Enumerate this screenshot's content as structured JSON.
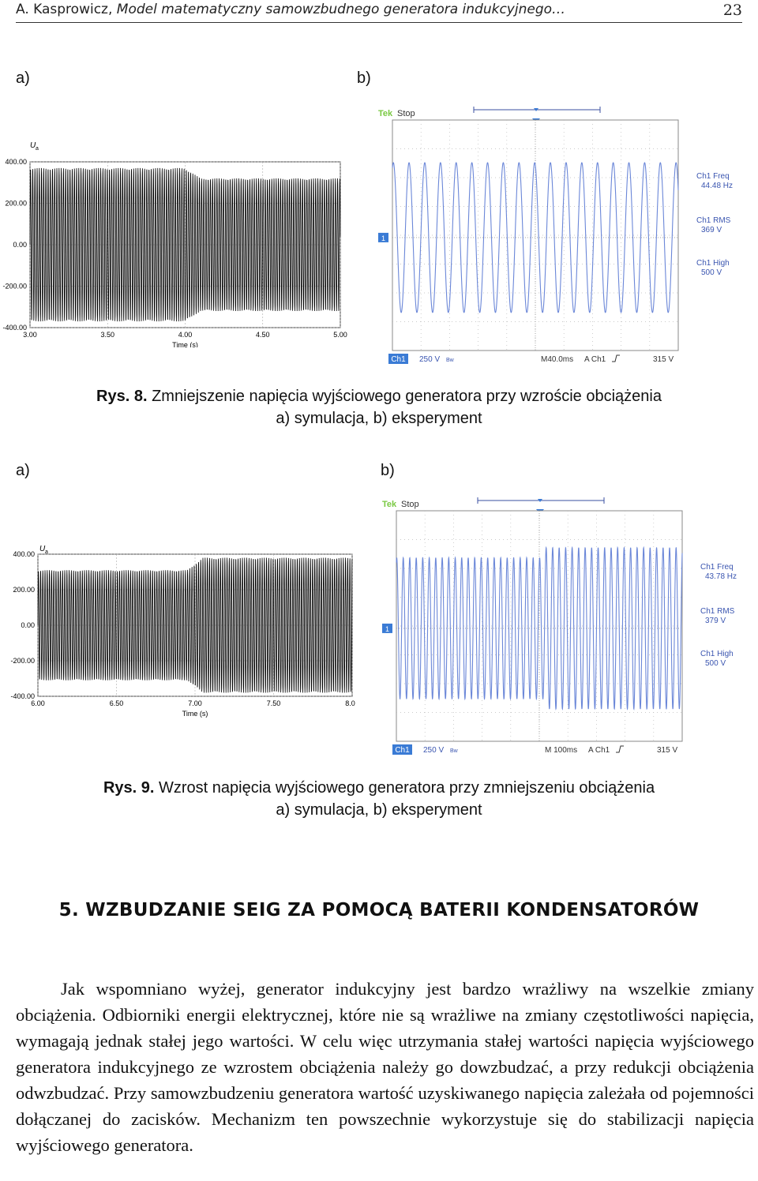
{
  "header": {
    "author": "A. Kasprowicz,",
    "title": "Model matematyczny samowzbudnego generatora indukcyjnego…",
    "page": "23"
  },
  "fig8": {
    "label_a": "a)",
    "label_b": "b)",
    "caption_num": "Rys. 8.",
    "caption_line1": "Zmniejszenie napięcia wyjściowego generatora przy wzroście obciążenia",
    "caption_line2": "a) symulacja, b) eksperyment",
    "sim": {
      "ylabel": "U",
      "ylabel_sub": "a",
      "xlabel": "Time (s)",
      "yticks": [
        "400.00",
        "200.00",
        "0.00",
        "-200.00",
        "-400.00"
      ],
      "xticks": [
        "3.00",
        "3.50",
        "4.00",
        "4.50",
        "5.00"
      ]
    },
    "scope": {
      "brand": "Tek",
      "state": "Stop",
      "ch_marker": "1",
      "readouts": [
        {
          "label": "Ch1 Freq",
          "value": "44.48 Hz"
        },
        {
          "label": "Ch1 RMS",
          "value": "369 V"
        },
        {
          "label": "Ch1 High",
          "value": "500 V"
        }
      ],
      "bottom": {
        "ch": "Ch1",
        "volts": "250 V",
        "timebase": "M40.0ms",
        "trig": "A  Ch1",
        "trig_level": "315 V"
      }
    }
  },
  "fig9": {
    "label_a": "a)",
    "label_b": "b)",
    "caption_num": "Rys. 9.",
    "caption_line1": "Wzrost napięcia wyjściowego generatora przy zmniejszeniu obciążenia",
    "caption_line2": "a) symulacja, b) eksperyment",
    "sim": {
      "ylabel": "U",
      "ylabel_sub": "a",
      "xlabel": "Time (s)",
      "yticks": [
        "400.00",
        "200.00",
        "0.00",
        "-200.00",
        "-400.00"
      ],
      "xticks": [
        "6.00",
        "6.50",
        "7.00",
        "7.50",
        "8.00"
      ]
    },
    "scope": {
      "brand": "Tek",
      "state": "Stop",
      "ch_marker": "1",
      "readouts": [
        {
          "label": "Ch1 Freq",
          "value": "43.78 Hz"
        },
        {
          "label": "Ch1 RMS",
          "value": "379 V"
        },
        {
          "label": "Ch1 High",
          "value": "500 V"
        }
      ],
      "bottom": {
        "ch": "Ch1",
        "volts": "250 V",
        "timebase": "M 100ms",
        "trig": "A  Ch1",
        "trig_level": "315 V"
      }
    }
  },
  "section_heading": "5. WZBUDZANIE SEIG ZA POMOCĄ BATERII KONDENSATORÓW",
  "paragraph": "Jak wspomniano wyżej, generator indukcyjny jest bardzo wrażliwy na wszelkie zmiany obciążenia. Odbiorniki energii elektrycznej, które nie są wrażliwe na zmiany częstotliwości napięcia, wymagają jednak stałej jego wartości. W celu więc utrzymania stałej wartości napięcia wyjściowego generatora indukcyjnego ze wzrostem obciążenia należy go dowzbudzać, a przy redukcji obciążenia odwzbudzać. Przy samowzbudzeniu generatora wartość uzyskiwanego napięcia zależała od pojemności dołączanej do zacisków. Mechanizm ten powszechnie wykorzystuje się do stabilizacji napięcia wyjściowego generatora.",
  "chart_data": [
    {
      "type": "line",
      "title": "",
      "xlabel": "Time (s)",
      "ylabel": "Ua",
      "xlim": [
        3.0,
        5.0
      ],
      "ylim": [
        -400,
        400
      ],
      "series": [
        {
          "x": [
            3.0,
            4.0,
            4.1,
            5.0
          ],
          "envelope_amplitude": [
            370,
            370,
            320,
            320
          ]
        }
      ]
    },
    {
      "type": "line",
      "title": "",
      "xlabel": "",
      "ylabel": "",
      "series": [
        {
          "cycles_shown": 18,
          "peak_divisions": 2.6
        }
      ]
    },
    {
      "type": "line",
      "title": "",
      "xlabel": "Time (s)",
      "ylabel": "Ua",
      "xlim": [
        6.0,
        8.0
      ],
      "ylim": [
        -400,
        400
      ],
      "series": [
        {
          "x": [
            6.0,
            6.95,
            7.05,
            8.0
          ],
          "envelope_amplitude": [
            310,
            310,
            380,
            380
          ]
        }
      ]
    },
    {
      "type": "line",
      "title": "",
      "xlabel": "",
      "ylabel": "",
      "series": [
        {
          "cycles_shown": 44,
          "peak_divisions_before": 2.5,
          "peak_divisions_after": 2.8
        }
      ]
    }
  ]
}
